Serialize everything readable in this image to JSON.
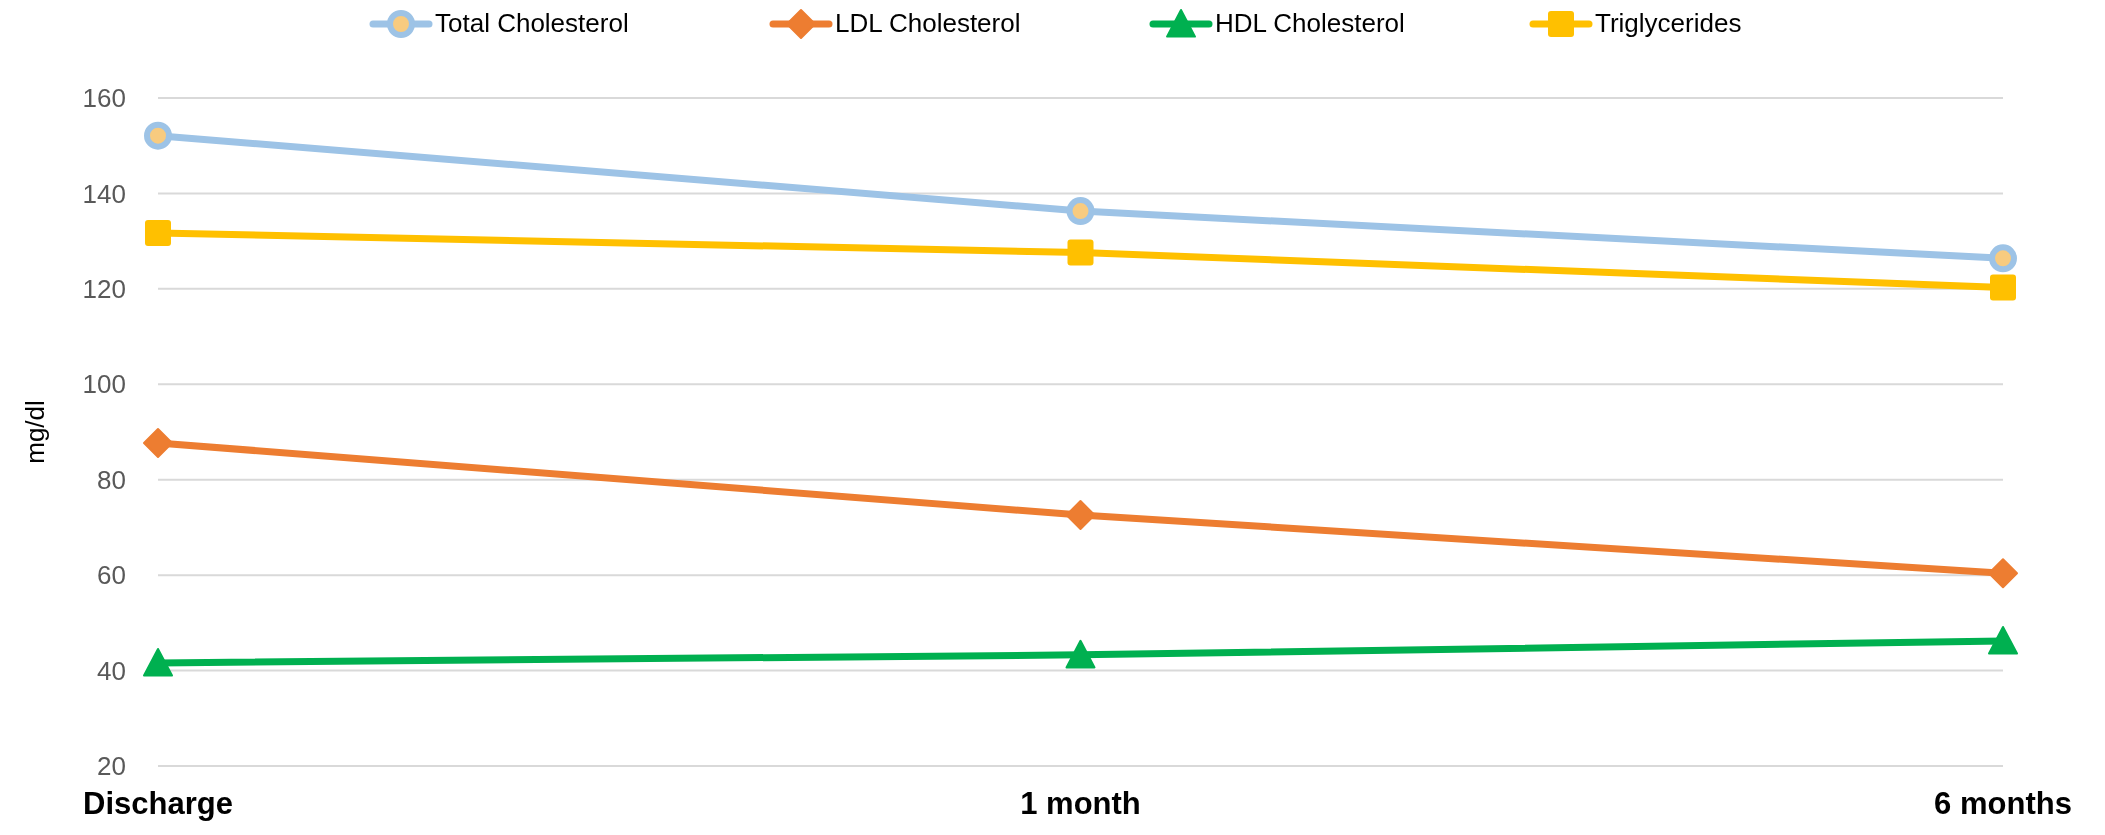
{
  "chart_data": {
    "type": "line",
    "ylabel": "mg/dl",
    "categories": [
      "Discharge",
      "1 month",
      "6 months"
    ],
    "series": [
      {
        "name": "Total Cholesterol",
        "color": "#9dc3e6",
        "marker": "circle",
        "values": [
          152.1,
          136.3,
          126.4
        ]
      },
      {
        "name": "LDL Cholesterol",
        "color": "#ed7d31",
        "marker": "diamond",
        "values": [
          87.7,
          72.6,
          60.4
        ]
      },
      {
        "name": "HDL Cholesterol",
        "color": "#00b050",
        "marker": "triangle",
        "values": [
          41.6,
          43.3,
          46.2
        ]
      },
      {
        "name": "Triglycerides",
        "color": "#ffc000",
        "marker": "square",
        "values": [
          131.7,
          127.6,
          120.3
        ]
      }
    ],
    "ylim": [
      20,
      160
    ],
    "yticks": [
      20,
      40,
      60,
      80,
      100,
      120,
      140,
      160
    ],
    "grid": "y",
    "legend": "top"
  }
}
